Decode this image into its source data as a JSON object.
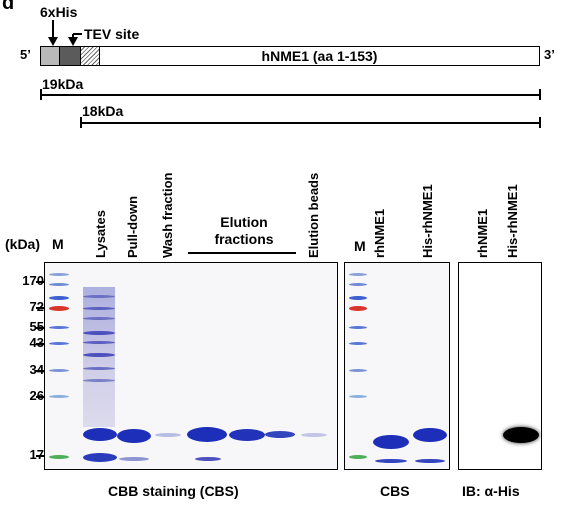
{
  "panel_letter": "d",
  "construct": {
    "tag_his": "6xHis",
    "tag_tev": "TEV site",
    "end5": "5’",
    "end3": "3’",
    "protein": "hNME1 (aa 1-153)",
    "size_full": "19kDa",
    "size_cleaved": "18kDa"
  },
  "lanes_main": [
    "Lysates",
    "Pull-down",
    "Wash fraction",
    "Elution beads"
  ],
  "elution_label": "Elution\nfractions",
  "lanes_cbs": [
    "rhNME1",
    "His-rhNME1"
  ],
  "lanes_ib": [
    "rhNME1",
    "His-rhNME1"
  ],
  "marker_label": "M",
  "kda_label": "(kDa)",
  "mw_markers": [
    "170",
    "72",
    "55",
    "43",
    "34",
    "26",
    "17"
  ],
  "footer": {
    "cbb": "CBB staining (CBS)",
    "cbs": "CBS",
    "ib": "IB: α-His"
  },
  "colors": {
    "band": "#1d2fb8",
    "ib_band": "#000000",
    "marker_red": "#d9352a",
    "marker_green": "#4fae59"
  }
}
